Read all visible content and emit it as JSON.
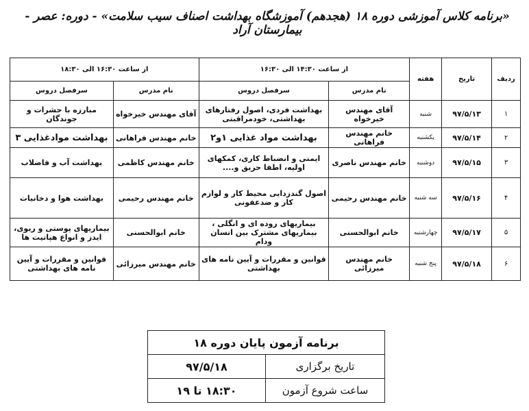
{
  "title": "«برنامه کلاس آموزشی دوره ۱۸ (هجدهم) آموزشگاه بهداشت اصناف سیب سلامت» - دوره: عصر - بیمارستان آراد",
  "table": {
    "headers": {
      "row": "ردیف",
      "date": "تاریخ",
      "weekday": "هفته",
      "slot1": "از ساعت ۱۴:۳۰ الی ۱۶:۳۰",
      "slot2": "از ساعت ۱۶:۳۰ الی ۱۸:۳۰",
      "teacher": "نام مدرس",
      "topic": "سرفصل دروس"
    },
    "rows": [
      {
        "n": "۱",
        "date": "۹۷/۵/۱۳",
        "day": "شنبه",
        "t1": "آقای مهندس خیرخواه",
        "c1": "بهداشت فردی، اصول رفتارهای بهداشتی، خودمراقبتی",
        "t2": "آقای مهندس خیرخواه",
        "c2": "مبارزه با حشرات و جوندگان"
      },
      {
        "n": "۲",
        "date": "۹۷/۵/۱۴",
        "day": "یکشنبه",
        "t1": "خانم مهندس فراهانی",
        "c1": "بهداشت مواد غذایی ۱و۲",
        "t2": "خانم مهندس فراهانی",
        "c2": "بهداشت موادغذایی ۳"
      },
      {
        "n": "۳",
        "date": "۹۷/۵/۱۵",
        "day": "دوشنبه",
        "t1": "خانم مهندس ناصری",
        "c1": "ایمنی و انضباط کاری، کمکهای اولیه، اطفا حریق و....",
        "t2": "خانم مهندس کاظمی",
        "c2": "بهداشت آب و فاضلاب"
      },
      {
        "n": "۴",
        "date": "۹۷/۵/۱۶",
        "day": "سه شنبه",
        "t1": "خانم مهندس رحیمی",
        "c1": "اصول گندزدایی محیط کار و لوازم کار و ضدعفونی",
        "t2": "خانم مهندس رحیمی",
        "c2": "بهداشت هوا و دخانیات"
      },
      {
        "n": "۵",
        "date": "۹۷/۵/۱۷",
        "day": "چهارشنبه",
        "t1": "خانم ابوالحسنی",
        "c1": "بیماریهای روده ای و انگلی ، بیماریهای مشترک بین انسان ودام",
        "t2": "خانم ابوالحسنی",
        "c2": "بیماریهای پوستی و ریوی، ایدز و انواع هپاتیت ها"
      },
      {
        "n": "۶",
        "date": "۹۷/۵/۱۸",
        "day": "پنج شنبه",
        "t1": "خانم مهندس میرزائی",
        "c1": "قوانین و مقررات و آیین نامه های بهداشتی",
        "t2": "خانم مهندس میرزائی",
        "c2": "قوانین و مقررات و آیین نامه های بهداشتی"
      }
    ]
  },
  "exam": {
    "title": "برنامه آزمون پایان دوره ۱۸",
    "date_label": "تاریخ برگزاری",
    "date": "۹۷/۵/۱۸",
    "time_label": "ساعت شروع آزمون",
    "time": "۱۸:۳۰ تا ۱۹"
  }
}
